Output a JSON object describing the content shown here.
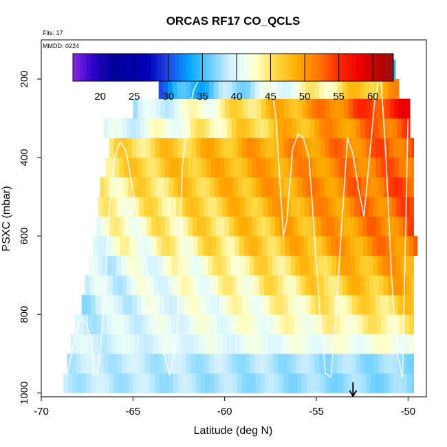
{
  "chart_data": {
    "type": "heatmap",
    "title": "ORCAS RF17 CO_QCLS",
    "subtitle_flts": "Flts: 17",
    "subtitle_mmdd": "MMDD: 0224",
    "xlabel": "Latitude (deg N)",
    "ylabel": "PSXC (mbar)",
    "xlim": [
      -70,
      -49
    ],
    "ylim": [
      1010,
      100
    ],
    "x_ticks": [
      -70,
      -65,
      -60,
      -55,
      -50
    ],
    "x_tick_labels": [
      "-70",
      "-65",
      "-60",
      "-55",
      "-50"
    ],
    "y_ticks": [
      200,
      400,
      600,
      800,
      1000
    ],
    "y_tick_labels": [
      "200",
      "400",
      "600",
      "800",
      "1000"
    ],
    "colorbar": {
      "min": 16,
      "max": 63,
      "ticks": [
        20,
        25,
        30,
        35,
        40,
        45,
        50,
        55,
        60
      ],
      "tick_labels": [
        "20",
        "25",
        "30",
        "35",
        "40",
        "45",
        "50",
        "55",
        "60"
      ]
    },
    "marker_arrow_lat": -53,
    "layers": [
      {
        "p": 975,
        "lat0": -68.8,
        "lat1": -49.7,
        "base": 38.5,
        "tilt": -1.5,
        "amp": 1.0
      },
      {
        "p": 925,
        "lat0": -68.6,
        "lat1": -49.7,
        "base": 38.8,
        "tilt": -1.5,
        "amp": 1.0
      },
      {
        "p": 875,
        "lat0": -68.4,
        "lat1": -49.7,
        "base": 39.2,
        "tilt": 3.0,
        "amp": 1.2
      },
      {
        "p": 825,
        "lat0": -68.2,
        "lat1": -49.7,
        "base": 38.8,
        "tilt": 6.0,
        "amp": 1.5
      },
      {
        "p": 775,
        "lat0": -67.8,
        "lat1": -49.7,
        "base": 38.6,
        "tilt": 8.0,
        "amp": 1.8
      },
      {
        "p": 725,
        "lat0": -67.6,
        "lat1": -49.7,
        "base": 38.8,
        "tilt": 10.0,
        "amp": 2.0
      },
      {
        "p": 675,
        "lat0": -67.4,
        "lat1": -49.7,
        "base": 39.2,
        "tilt": 11.0,
        "amp": 2.0
      },
      {
        "p": 625,
        "lat0": -67.2,
        "lat1": -49.5,
        "base": 41.0,
        "tilt": 11.0,
        "amp": 2.2
      },
      {
        "p": 575,
        "lat0": -67.0,
        "lat1": -49.7,
        "base": 42.0,
        "tilt": 10.5,
        "amp": 2.2
      },
      {
        "p": 525,
        "lat0": -66.9,
        "lat1": -49.7,
        "base": 43.0,
        "tilt": 10.0,
        "amp": 2.0
      },
      {
        "p": 475,
        "lat0": -66.8,
        "lat1": -49.7,
        "base": 44.0,
        "tilt": 9.5,
        "amp": 2.0
      },
      {
        "p": 425,
        "lat0": -66.5,
        "lat1": -49.7,
        "base": 45.5,
        "tilt": 7.5,
        "amp": 1.8
      },
      {
        "p": 375,
        "lat0": -66.3,
        "lat1": -49.7,
        "base": 45.0,
        "tilt": 8.5,
        "amp": 2.0
      },
      {
        "p": 325,
        "lat0": -66.6,
        "lat1": -49.9,
        "base": 39.0,
        "tilt": 15.0,
        "amp": 2.0
      },
      {
        "p": 275,
        "lat0": -65.0,
        "lat1": -49.9,
        "base": 38.0,
        "tilt": 19.0,
        "amp": 2.0
      },
      {
        "p": 225,
        "lat0": -63.6,
        "lat1": -50.5,
        "base": 32.0,
        "tilt": 18.0,
        "amp": 2.0
      },
      {
        "p": 175,
        "lat0": -62.5,
        "lat1": -50.7,
        "base": 24.0,
        "tilt": 10.0,
        "amp": 1.5
      }
    ],
    "flight_track_lat": [
      -68.6,
      -68.2,
      -67.9,
      -67.6,
      -67.3,
      -67.1,
      -66.9,
      -66.6,
      -66.3,
      -66.0,
      -65.7,
      -65.4,
      -65.0,
      -64.6,
      -64.2,
      -63.8,
      -63.4,
      -63.0,
      -62.6,
      -62.3,
      -62.0,
      -61.7,
      -61.2,
      -60.6,
      -60.0,
      -59.4,
      -58.8,
      -58.2,
      -57.8,
      -57.5,
      -57.2,
      -57.0,
      -56.8,
      -56.6,
      -56.3,
      -56.0,
      -55.7,
      -55.4,
      -55.1,
      -54.8,
      -54.5,
      -54.2,
      -53.9,
      -53.6,
      -53.3,
      -53.0,
      -52.7,
      -52.4,
      -52.1,
      -51.8,
      -51.5,
      -51.2,
      -50.9,
      -50.6,
      -50.3,
      -50.0
    ],
    "flight_track_p": [
      955,
      870,
      815,
      815,
      860,
      955,
      950,
      780,
      540,
      400,
      360,
      380,
      480,
      600,
      700,
      800,
      880,
      955,
      860,
      420,
      300,
      230,
      180,
      180,
      180,
      180,
      180,
      180,
      180,
      190,
      300,
      450,
      600,
      560,
      380,
      340,
      350,
      400,
      600,
      800,
      950,
      960,
      780,
      560,
      350,
      390,
      480,
      550,
      400,
      250,
      180,
      400,
      700,
      900,
      960,
      300
    ]
  }
}
